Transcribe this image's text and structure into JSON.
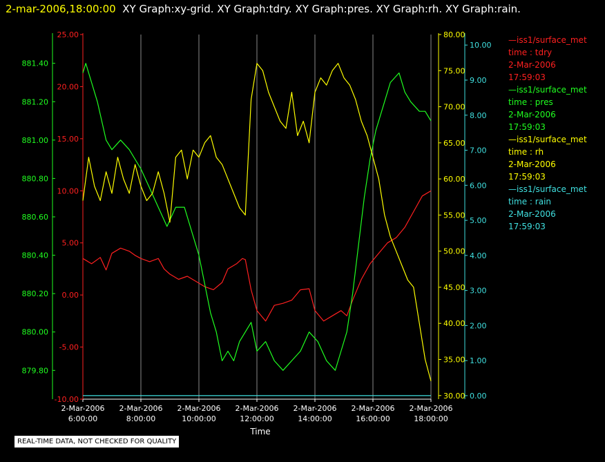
{
  "header": {
    "timestamp": "2-mar-2006,18:00:00",
    "titles": "XY Graph:xy-grid.  XY Graph:tdry.  XY Graph:pres.  XY Graph:rh.  XY Graph:rain."
  },
  "legend": [
    {
      "series": "—iss1/surface_met",
      "var": "time : tdry",
      "date": "2-Mar-2006",
      "time": "17:59:03",
      "color": "#ff2020"
    },
    {
      "series": "—iss1/surface_met",
      "var": "time : pres",
      "date": "2-Mar-2006",
      "time": "17:59:03",
      "color": "#20ff20"
    },
    {
      "series": "—iss1/surface_met",
      "var": "time : rh",
      "date": "2-Mar-2006",
      "time": "17:59:03",
      "color": "#ffff00"
    },
    {
      "series": "—iss1/surface_met",
      "var": "time : rain",
      "date": "2-Mar-2006",
      "time": "17:59:03",
      "color": "#40e0e0"
    }
  ],
  "notice": "REAL-TIME DATA, NOT CHECKED FOR QUALITY",
  "chart_data": {
    "type": "line",
    "xlabel": "Time",
    "x_ticks": [
      {
        "date": "2-Mar-2006",
        "time": "6:00:00"
      },
      {
        "date": "2-Mar-2006",
        "time": "8:00:00"
      },
      {
        "date": "2-Mar-2006",
        "time": "10:00:00"
      },
      {
        "date": "2-Mar-2006",
        "time": "12:00:00"
      },
      {
        "date": "2-Mar-2006",
        "time": "14:00:00"
      },
      {
        "date": "2-Mar-2006",
        "time": "16:00:00"
      },
      {
        "date": "2-Mar-2006",
        "time": "18:00:00"
      }
    ],
    "xlim_hours": [
      6,
      18
    ],
    "grid": "vertical",
    "axes": {
      "pres": {
        "ticks": [
          "879.80",
          "880.00",
          "880.20",
          "880.40",
          "880.60",
          "880.80",
          "881.00",
          "881.20",
          "881.40"
        ],
        "ylim": [
          879.65,
          881.55
        ],
        "color": "#20ff20"
      },
      "tdry": {
        "ticks": [
          "-10.00",
          "-5.00",
          "0.00",
          "5.00",
          "10.00",
          "15.00",
          "20.00",
          "25.00"
        ],
        "ylim": [
          -10,
          25
        ],
        "color": "#ff2020"
      },
      "rh": {
        "ticks": [
          "30.00",
          "35.00",
          "40.00",
          "45.00",
          "50.00",
          "55.00",
          "60.00",
          "65.00",
          "70.00",
          "75.00",
          "80.00"
        ],
        "ylim": [
          29.5,
          80
        ],
        "color": "#ffff00"
      },
      "rain": {
        "ticks": [
          "0.00",
          "1.00",
          "2.00",
          "3.00",
          "4.00",
          "5.00",
          "6.00",
          "7.00",
          "8.00",
          "9.00",
          "10.00"
        ],
        "ylim": [
          -0.1,
          10.3
        ],
        "color": "#40e0e0"
      }
    },
    "series": [
      {
        "name": "tdry",
        "axis": "tdry",
        "x": [
          6.0,
          6.3,
          6.6,
          6.8,
          7.0,
          7.3,
          7.6,
          7.8,
          8.0,
          8.3,
          8.6,
          8.8,
          9.0,
          9.3,
          9.6,
          9.9,
          10.2,
          10.5,
          10.8,
          11.0,
          11.3,
          11.5,
          11.6,
          11.8,
          12.0,
          12.3,
          12.6,
          12.9,
          13.2,
          13.5,
          13.8,
          14.0,
          14.3,
          14.6,
          14.9,
          15.1,
          15.3,
          15.6,
          15.9,
          16.2,
          16.5,
          16.8,
          17.1,
          17.4,
          17.7,
          18.0
        ],
        "values": [
          3.5,
          3.0,
          3.6,
          2.4,
          4.0,
          4.5,
          4.2,
          3.8,
          3.5,
          3.2,
          3.5,
          2.5,
          2.0,
          1.5,
          1.8,
          1.3,
          0.8,
          0.5,
          1.2,
          2.5,
          3.0,
          3.5,
          3.4,
          0.5,
          -1.5,
          -2.5,
          -1.0,
          -0.8,
          -0.5,
          0.5,
          0.6,
          -1.5,
          -2.5,
          -2.0,
          -1.5,
          -2.0,
          -0.5,
          1.5,
          3.0,
          4.0,
          5.0,
          5.5,
          6.5,
          8.0,
          9.5,
          10.0
        ]
      },
      {
        "name": "pres",
        "axis": "pres",
        "x": [
          6.0,
          6.1,
          6.3,
          6.5,
          6.8,
          7.0,
          7.3,
          7.6,
          8.0,
          8.3,
          8.6,
          8.9,
          9.2,
          9.5,
          9.8,
          10.0,
          10.2,
          10.4,
          10.6,
          10.8,
          11.0,
          11.2,
          11.4,
          11.6,
          11.8,
          12.0,
          12.3,
          12.6,
          12.9,
          13.2,
          13.5,
          13.8,
          14.1,
          14.4,
          14.7,
          14.9,
          15.1,
          15.3,
          15.5,
          15.7,
          15.9,
          16.1,
          16.3,
          16.6,
          16.9,
          17.1,
          17.3,
          17.6,
          17.8,
          18.0
        ],
        "values": [
          881.35,
          881.4,
          881.3,
          881.2,
          881.0,
          880.95,
          881.0,
          880.95,
          880.85,
          880.75,
          880.65,
          880.55,
          880.65,
          880.65,
          880.5,
          880.4,
          880.25,
          880.1,
          880.0,
          879.85,
          879.9,
          879.85,
          879.95,
          880.0,
          880.05,
          879.9,
          879.95,
          879.85,
          879.8,
          879.85,
          879.9,
          880.0,
          879.95,
          879.85,
          879.8,
          879.9,
          880.0,
          880.2,
          880.45,
          880.7,
          880.9,
          881.05,
          881.15,
          881.3,
          881.35,
          881.25,
          881.2,
          881.15,
          881.15,
          881.1
        ]
      },
      {
        "name": "rh",
        "axis": "rh",
        "x": [
          6.0,
          6.2,
          6.4,
          6.6,
          6.8,
          7.0,
          7.2,
          7.4,
          7.6,
          7.8,
          8.0,
          8.2,
          8.4,
          8.6,
          8.8,
          9.0,
          9.2,
          9.4,
          9.6,
          9.8,
          10.0,
          10.2,
          10.4,
          10.6,
          10.8,
          11.0,
          11.2,
          11.4,
          11.6,
          11.8,
          12.0,
          12.2,
          12.4,
          12.6,
          12.8,
          13.0,
          13.2,
          13.4,
          13.6,
          13.8,
          14.0,
          14.2,
          14.4,
          14.6,
          14.8,
          15.0,
          15.2,
          15.4,
          15.6,
          15.8,
          16.0,
          16.2,
          16.4,
          16.6,
          16.8,
          17.0,
          17.2,
          17.4,
          17.6,
          17.8,
          18.0
        ],
        "values": [
          57,
          63,
          59,
          57,
          61,
          58,
          63,
          60,
          58,
          62,
          59,
          57,
          58,
          61,
          58,
          54,
          63,
          64,
          60,
          64,
          63,
          65,
          66,
          63,
          62,
          60,
          58,
          56,
          55,
          71,
          76,
          75,
          72,
          70,
          68,
          67,
          72,
          66,
          68,
          65,
          72,
          74,
          73,
          75,
          76,
          74,
          73,
          71,
          68,
          66,
          63,
          60,
          55,
          52,
          50,
          48,
          46,
          45,
          40,
          35,
          32
        ]
      },
      {
        "name": "rain",
        "axis": "rain",
        "x": [
          6.0,
          18.0
        ],
        "values": [
          0.0,
          0.0
        ]
      }
    ]
  }
}
